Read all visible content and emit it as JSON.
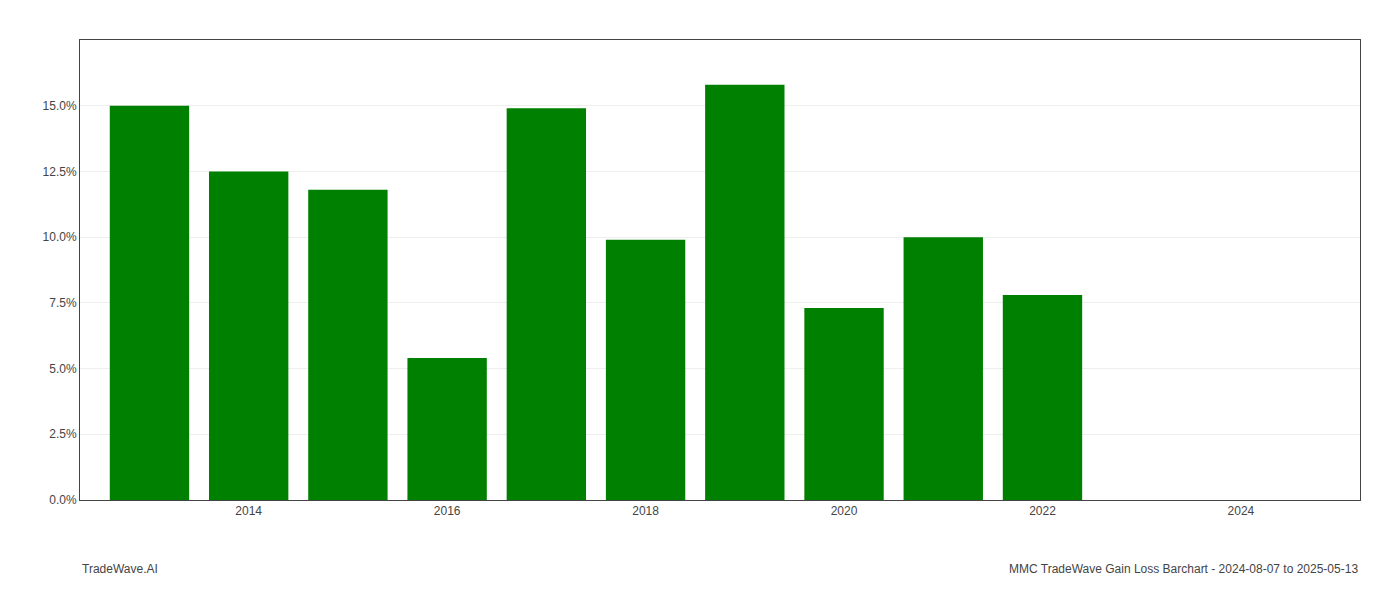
{
  "chart_data": {
    "type": "bar",
    "x": [
      2013,
      2014,
      2015,
      2016,
      2017,
      2018,
      2019,
      2020,
      2021,
      2022,
      2023
    ],
    "values": [
      0.15,
      0.125,
      0.118,
      0.054,
      0.149,
      0.099,
      0.158,
      0.073,
      0.1,
      0.078,
      0.0
    ],
    "color": "#008000",
    "xlim": [
      2012.3,
      2025.2
    ],
    "xticks": [
      2014,
      2016,
      2018,
      2020,
      2022,
      2024
    ],
    "ylim": [
      0,
      0.175
    ],
    "yticks": [
      {
        "value": 0.0,
        "label": "0.0%"
      },
      {
        "value": 0.025,
        "label": "2.5%"
      },
      {
        "value": 0.05,
        "label": "5.0%"
      },
      {
        "value": 0.075,
        "label": "7.5%"
      },
      {
        "value": 0.1,
        "label": "10.0%"
      },
      {
        "value": 0.125,
        "label": "12.5%"
      },
      {
        "value": 0.15,
        "label": "15.0%"
      }
    ],
    "grid": true,
    "annotations": [
      "TradeWave.AI",
      "MMC TradeWave Gain Loss Barchart - 2024-08-07 to 2025-05-13"
    ]
  }
}
